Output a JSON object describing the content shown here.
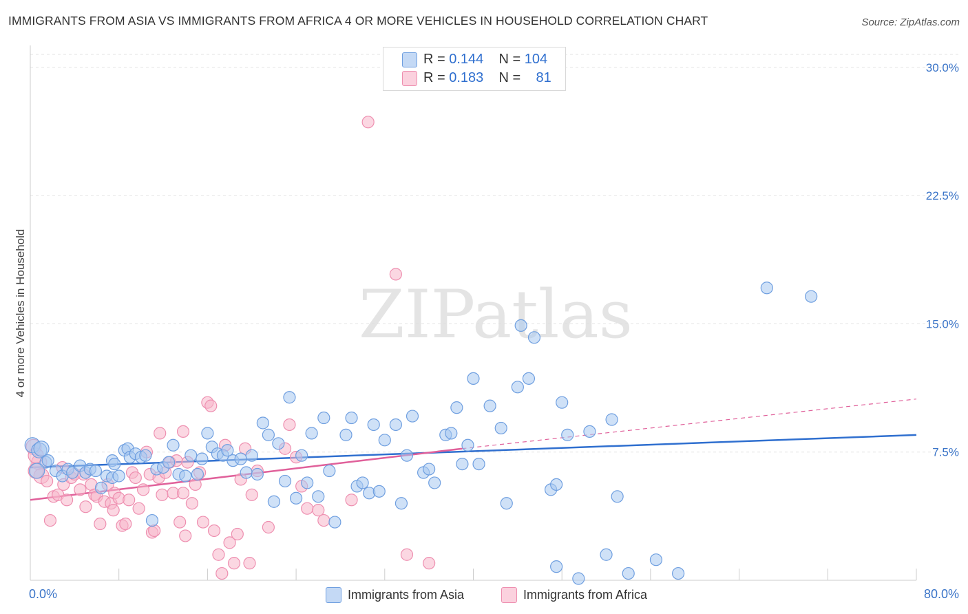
{
  "title": "IMMIGRANTS FROM ASIA VS IMMIGRANTS FROM AFRICA 4 OR MORE VEHICLES IN HOUSEHOLD CORRELATION CHART",
  "source": "Source: ZipAtlas.com",
  "watermark": "ZIPatlas",
  "legend": {
    "rows": [
      {
        "r_label": "R =",
        "r_value": "0.144",
        "n_label": "N =",
        "n_value": "104",
        "color": "#a8c8f0"
      },
      {
        "r_label": "R =",
        "r_value": "0.183",
        "n_label": "N =",
        "n_value": "81",
        "color": "#f7b6cb"
      }
    ]
  },
  "bottom_legend": [
    {
      "label": "Immigrants from Asia",
      "color": "#a8c8f0"
    },
    {
      "label": "Immigrants from Africa",
      "color": "#f7b6cb"
    }
  ],
  "chart_data": {
    "type": "scatter",
    "title": "IMMIGRANTS FROM ASIA VS IMMIGRANTS FROM AFRICA 4 OR MORE VEHICLES IN HOUSEHOLD CORRELATION CHART",
    "xlabel": "",
    "ylabel": "4 or more Vehicles in Household",
    "xlim": [
      0,
      80
    ],
    "ylim": [
      0,
      31
    ],
    "x_tick_labels": [
      "0.0%",
      "80.0%"
    ],
    "y_ticks": [
      7.5,
      15.0,
      22.5,
      30.0
    ],
    "y_tick_labels": [
      "7.5%",
      "15.0%",
      "22.5%",
      "30.0%"
    ],
    "grid": "horizontal dashed",
    "legend_position": "top-center",
    "colors": {
      "asia_fill": "#a8c8f0",
      "asia_stroke": "#6f9fe0",
      "asia_line": "#2f6fcf",
      "africa_fill": "#f7b6cb",
      "africa_stroke": "#ee8fb0",
      "africa_line": "#e0609a"
    },
    "series": [
      {
        "name": "Immigrants from Asia",
        "trend": {
          "x": [
            0,
            80
          ],
          "y": [
            6.6,
            8.5
          ]
        },
        "points": [
          {
            "x": 0.2,
            "y": 7.9
          },
          {
            "x": 0.8,
            "y": 7.6
          },
          {
            "x": 1.4,
            "y": 6.9
          },
          {
            "x": 1.6,
            "y": 7.0
          },
          {
            "x": 2.3,
            "y": 6.4
          },
          {
            "x": 2.9,
            "y": 6.1
          },
          {
            "x": 3.4,
            "y": 6.5
          },
          {
            "x": 3.8,
            "y": 6.3
          },
          {
            "x": 4.5,
            "y": 6.7
          },
          {
            "x": 5.0,
            "y": 6.3
          },
          {
            "x": 5.4,
            "y": 6.5
          },
          {
            "x": 5.9,
            "y": 6.4
          },
          {
            "x": 6.4,
            "y": 5.4
          },
          {
            "x": 6.9,
            "y": 6.1
          },
          {
            "x": 7.4,
            "y": 7.0
          },
          {
            "x": 7.4,
            "y": 6.0
          },
          {
            "x": 7.6,
            "y": 6.8
          },
          {
            "x": 8.0,
            "y": 6.1
          },
          {
            "x": 8.5,
            "y": 7.6
          },
          {
            "x": 8.8,
            "y": 7.7
          },
          {
            "x": 9.0,
            "y": 7.2
          },
          {
            "x": 9.5,
            "y": 7.4
          },
          {
            "x": 10.0,
            "y": 7.2
          },
          {
            "x": 10.4,
            "y": 7.3
          },
          {
            "x": 11.0,
            "y": 3.5
          },
          {
            "x": 11.4,
            "y": 6.5
          },
          {
            "x": 12.0,
            "y": 6.6
          },
          {
            "x": 12.5,
            "y": 6.9
          },
          {
            "x": 12.9,
            "y": 7.9
          },
          {
            "x": 13.4,
            "y": 6.2
          },
          {
            "x": 14.0,
            "y": 6.1
          },
          {
            "x": 14.5,
            "y": 7.3
          },
          {
            "x": 15.1,
            "y": 6.2
          },
          {
            "x": 15.5,
            "y": 7.1
          },
          {
            "x": 16.0,
            "y": 8.6
          },
          {
            "x": 16.4,
            "y": 7.8
          },
          {
            "x": 16.9,
            "y": 7.4
          },
          {
            "x": 17.4,
            "y": 7.3
          },
          {
            "x": 17.8,
            "y": 7.6
          },
          {
            "x": 18.3,
            "y": 7.0
          },
          {
            "x": 19.0,
            "y": 7.1
          },
          {
            "x": 19.5,
            "y": 6.3
          },
          {
            "x": 20.0,
            "y": 7.3
          },
          {
            "x": 20.5,
            "y": 6.2
          },
          {
            "x": 21.0,
            "y": 9.2
          },
          {
            "x": 21.5,
            "y": 8.5
          },
          {
            "x": 22.0,
            "y": 4.6
          },
          {
            "x": 22.4,
            "y": 8.0
          },
          {
            "x": 23.0,
            "y": 5.8
          },
          {
            "x": 23.4,
            "y": 10.7
          },
          {
            "x": 24.0,
            "y": 4.8
          },
          {
            "x": 24.5,
            "y": 7.3
          },
          {
            "x": 25.0,
            "y": 5.7
          },
          {
            "x": 25.4,
            "y": 8.6
          },
          {
            "x": 26.0,
            "y": 4.9
          },
          {
            "x": 26.5,
            "y": 9.5
          },
          {
            "x": 27.0,
            "y": 6.4
          },
          {
            "x": 27.5,
            "y": 3.4
          },
          {
            "x": 28.5,
            "y": 8.5
          },
          {
            "x": 29.0,
            "y": 9.5
          },
          {
            "x": 29.5,
            "y": 5.5
          },
          {
            "x": 30.0,
            "y": 5.7
          },
          {
            "x": 30.6,
            "y": 5.1
          },
          {
            "x": 31.0,
            "y": 9.1
          },
          {
            "x": 31.5,
            "y": 5.2
          },
          {
            "x": 32.0,
            "y": 8.2
          },
          {
            "x": 33.0,
            "y": 9.1
          },
          {
            "x": 33.5,
            "y": 4.5
          },
          {
            "x": 34.0,
            "y": 7.3
          },
          {
            "x": 34.5,
            "y": 9.6
          },
          {
            "x": 35.5,
            "y": 6.3
          },
          {
            "x": 36.0,
            "y": 6.5
          },
          {
            "x": 36.5,
            "y": 5.7
          },
          {
            "x": 37.5,
            "y": 8.5
          },
          {
            "x": 38.0,
            "y": 8.6
          },
          {
            "x": 38.5,
            "y": 10.1
          },
          {
            "x": 39.0,
            "y": 6.8
          },
          {
            "x": 39.5,
            "y": 7.9
          },
          {
            "x": 40.0,
            "y": 11.8
          },
          {
            "x": 40.5,
            "y": 6.8
          },
          {
            "x": 41.5,
            "y": 10.2
          },
          {
            "x": 42.5,
            "y": 8.9
          },
          {
            "x": 43.0,
            "y": 4.5
          },
          {
            "x": 44.0,
            "y": 11.3
          },
          {
            "x": 44.3,
            "y": 14.9
          },
          {
            "x": 45.0,
            "y": 11.8
          },
          {
            "x": 45.5,
            "y": 14.2
          },
          {
            "x": 47.0,
            "y": 5.3
          },
          {
            "x": 47.5,
            "y": 5.6
          },
          {
            "x": 47.5,
            "y": 0.8
          },
          {
            "x": 48.0,
            "y": 10.4
          },
          {
            "x": 48.5,
            "y": 8.5
          },
          {
            "x": 49.5,
            "y": 0.1
          },
          {
            "x": 50.5,
            "y": 8.7
          },
          {
            "x": 52.5,
            "y": 9.4
          },
          {
            "x": 52.0,
            "y": 1.5
          },
          {
            "x": 53.0,
            "y": 4.9
          },
          {
            "x": 54.0,
            "y": 0.4
          },
          {
            "x": 56.5,
            "y": 1.2
          },
          {
            "x": 58.5,
            "y": 0.4
          },
          {
            "x": 66.5,
            "y": 17.1
          },
          {
            "x": 70.5,
            "y": 16.6
          },
          {
            "x": 0.6,
            "y": 6.4
          },
          {
            "x": 1.0,
            "y": 7.7
          }
        ]
      },
      {
        "name": "Immigrants from Africa",
        "trend": {
          "x": [
            0,
            39
          ],
          "y": [
            4.7,
            7.7
          ]
        },
        "trend_extension": {
          "x": [
            39,
            80
          ],
          "y": [
            7.7,
            10.6
          ]
        },
        "points": [
          {
            "x": 0.3,
            "y": 7.8
          },
          {
            "x": 0.8,
            "y": 6.9
          },
          {
            "x": 1.0,
            "y": 6.1
          },
          {
            "x": 1.5,
            "y": 5.8
          },
          {
            "x": 1.8,
            "y": 3.5
          },
          {
            "x": 2.1,
            "y": 4.9
          },
          {
            "x": 2.5,
            "y": 5.0
          },
          {
            "x": 3.0,
            "y": 5.6
          },
          {
            "x": 3.3,
            "y": 4.7
          },
          {
            "x": 3.7,
            "y": 6.0
          },
          {
            "x": 4.0,
            "y": 6.2
          },
          {
            "x": 4.5,
            "y": 5.3
          },
          {
            "x": 5.0,
            "y": 4.3
          },
          {
            "x": 5.5,
            "y": 5.6
          },
          {
            "x": 5.8,
            "y": 5.0
          },
          {
            "x": 6.0,
            "y": 4.9
          },
          {
            "x": 6.3,
            "y": 3.3
          },
          {
            "x": 6.7,
            "y": 4.6
          },
          {
            "x": 7.0,
            "y": 5.6
          },
          {
            "x": 7.3,
            "y": 4.5
          },
          {
            "x": 7.6,
            "y": 5.1
          },
          {
            "x": 8.0,
            "y": 4.8
          },
          {
            "x": 8.3,
            "y": 3.2
          },
          {
            "x": 8.6,
            "y": 3.3
          },
          {
            "x": 8.9,
            "y": 4.7
          },
          {
            "x": 9.2,
            "y": 6.3
          },
          {
            "x": 9.5,
            "y": 6.0
          },
          {
            "x": 9.8,
            "y": 4.2
          },
          {
            "x": 10.2,
            "y": 5.3
          },
          {
            "x": 10.5,
            "y": 7.5
          },
          {
            "x": 10.8,
            "y": 6.2
          },
          {
            "x": 11.0,
            "y": 2.8
          },
          {
            "x": 11.2,
            "y": 2.9
          },
          {
            "x": 11.6,
            "y": 6.0
          },
          {
            "x": 11.9,
            "y": 5.0
          },
          {
            "x": 12.2,
            "y": 6.3
          },
          {
            "x": 12.6,
            "y": 6.9
          },
          {
            "x": 12.9,
            "y": 5.1
          },
          {
            "x": 13.2,
            "y": 7.0
          },
          {
            "x": 13.5,
            "y": 3.4
          },
          {
            "x": 13.8,
            "y": 5.1
          },
          {
            "x": 14.2,
            "y": 6.9
          },
          {
            "x": 14.6,
            "y": 4.5
          },
          {
            "x": 14.9,
            "y": 5.6
          },
          {
            "x": 15.3,
            "y": 6.3
          },
          {
            "x": 15.6,
            "y": 3.4
          },
          {
            "x": 16.0,
            "y": 10.4
          },
          {
            "x": 16.3,
            "y": 10.2
          },
          {
            "x": 16.6,
            "y": 2.9
          },
          {
            "x": 17.0,
            "y": 1.5
          },
          {
            "x": 17.3,
            "y": 0.4
          },
          {
            "x": 17.6,
            "y": 7.9
          },
          {
            "x": 18.0,
            "y": 2.2
          },
          {
            "x": 18.4,
            "y": 1.0
          },
          {
            "x": 18.7,
            "y": 2.7
          },
          {
            "x": 19.0,
            "y": 5.9
          },
          {
            "x": 19.4,
            "y": 7.7
          },
          {
            "x": 19.8,
            "y": 1.0
          },
          {
            "x": 20.0,
            "y": 5.0
          },
          {
            "x": 20.5,
            "y": 6.4
          },
          {
            "x": 21.5,
            "y": 3.1
          },
          {
            "x": 23.0,
            "y": 7.7
          },
          {
            "x": 23.4,
            "y": 9.1
          },
          {
            "x": 24.0,
            "y": 7.2
          },
          {
            "x": 24.5,
            "y": 5.5
          },
          {
            "x": 25.0,
            "y": 4.2
          },
          {
            "x": 26.0,
            "y": 4.1
          },
          {
            "x": 26.5,
            "y": 3.5
          },
          {
            "x": 29.0,
            "y": 4.7
          },
          {
            "x": 30.5,
            "y": 26.8
          },
          {
            "x": 33.0,
            "y": 17.9
          },
          {
            "x": 34.0,
            "y": 1.5
          },
          {
            "x": 36.0,
            "y": 1.0
          },
          {
            "x": 7.5,
            "y": 4.1
          },
          {
            "x": 11.7,
            "y": 8.6
          },
          {
            "x": 13.8,
            "y": 8.7
          },
          {
            "x": 4.8,
            "y": 6.2
          },
          {
            "x": 2.9,
            "y": 6.6
          },
          {
            "x": 0.5,
            "y": 6.4
          },
          {
            "x": 14.0,
            "y": 2.6
          },
          {
            "x": 0.5,
            "y": 7.3
          }
        ]
      }
    ]
  }
}
